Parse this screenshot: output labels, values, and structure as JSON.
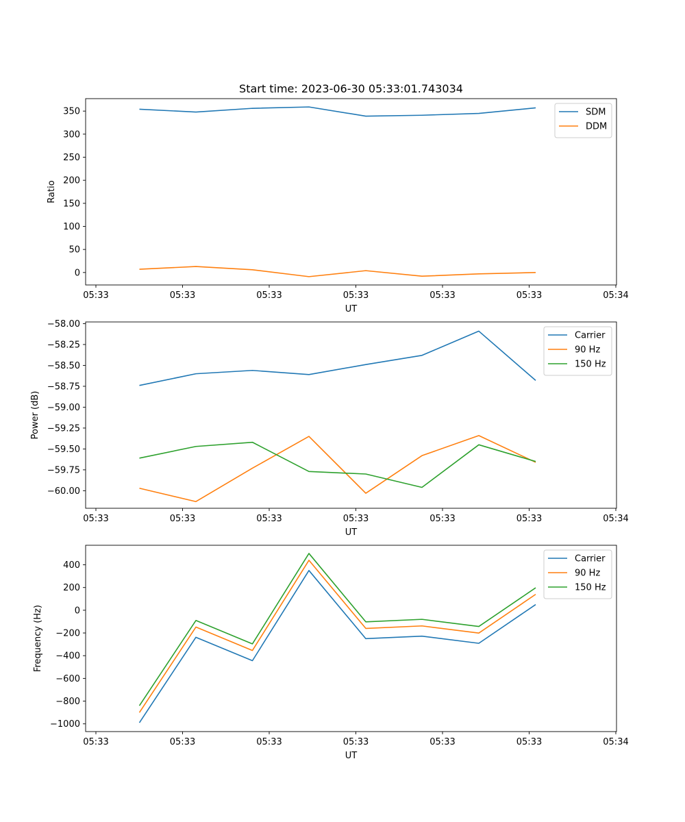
{
  "chart_data": [
    {
      "type": "line",
      "title": "Start time: 2023-06-30 05:33:01.743034",
      "xlabel": "UT",
      "ylabel": "Ratio",
      "x_tick_labels": [
        "05:33",
        "05:33",
        "05:33",
        "05:33",
        "05:33",
        "05:33",
        "05:33",
        "05:34"
      ],
      "x_count": 8,
      "ylim": [
        -27,
        377
      ],
      "yticks": [
        0,
        50,
        100,
        150,
        200,
        250,
        300,
        350
      ],
      "ytick_labels": [
        "0",
        "50",
        "100",
        "150",
        "200",
        "250",
        "300",
        "350"
      ],
      "grid": false,
      "legend_position": "top-right",
      "series": [
        {
          "name": "SDM",
          "color": "#1f77b4",
          "values": [
            354,
            348,
            356,
            359,
            339,
            341,
            345,
            357
          ]
        },
        {
          "name": "DDM",
          "color": "#ff7f0e",
          "values": [
            7,
            13,
            6,
            -9,
            4,
            -8,
            -3,
            0
          ]
        }
      ]
    },
    {
      "type": "line",
      "title": "",
      "xlabel": "UT",
      "ylabel": "Power (dB)",
      "x_tick_labels": [
        "05:33",
        "05:33",
        "05:33",
        "05:33",
        "05:33",
        "05:33",
        "05:33",
        "05:34"
      ],
      "x_count": 8,
      "ylim": [
        -60.21,
        -57.98
      ],
      "yticks": [
        -60.0,
        -59.75,
        -59.5,
        -59.25,
        -59.0,
        -58.75,
        -58.5,
        -58.25,
        -58.0
      ],
      "ytick_labels": [
        "−60.00",
        "−59.75",
        "−59.50",
        "−59.25",
        "−59.00",
        "−58.75",
        "−58.50",
        "−58.25",
        "−58.00"
      ],
      "grid": false,
      "legend_position": "top-right",
      "series": [
        {
          "name": "Carrier",
          "color": "#1f77b4",
          "values": [
            -58.74,
            -58.6,
            -58.56,
            -58.61,
            -58.49,
            -58.38,
            -58.09,
            -58.68
          ]
        },
        {
          "name": "90 Hz",
          "color": "#ff7f0e",
          "values": [
            -59.97,
            -60.13,
            -59.73,
            -59.35,
            -60.03,
            -59.58,
            -59.34,
            -59.66
          ]
        },
        {
          "name": "150 Hz",
          "color": "#2ca02c",
          "values": [
            -59.61,
            -59.47,
            -59.42,
            -59.77,
            -59.8,
            -59.96,
            -59.45,
            -59.65
          ]
        }
      ]
    },
    {
      "type": "line",
      "title": "",
      "xlabel": "UT",
      "ylabel": "Frequency (Hz)",
      "x_tick_labels": [
        "05:33",
        "05:33",
        "05:33",
        "05:33",
        "05:33",
        "05:33",
        "05:33",
        "05:34"
      ],
      "x_count": 8,
      "ylim": [
        -1068,
        572
      ],
      "yticks": [
        -1000,
        -800,
        -600,
        -400,
        -200,
        0,
        200,
        400
      ],
      "ytick_labels": [
        "−1000",
        "−800",
        "−600",
        "−400",
        "−200",
        "0",
        "200",
        "400"
      ],
      "grid": false,
      "legend_position": "top-right",
      "series": [
        {
          "name": "Carrier",
          "color": "#1f77b4",
          "values": [
            -990,
            -238,
            -444,
            350,
            -250,
            -228,
            -291,
            50
          ]
        },
        {
          "name": "90 Hz",
          "color": "#ff7f0e",
          "values": [
            -900,
            -148,
            -354,
            440,
            -160,
            -138,
            -201,
            140
          ]
        },
        {
          "name": "150 Hz",
          "color": "#2ca02c",
          "values": [
            -840,
            -90,
            -296,
            500,
            -102,
            -80,
            -143,
            198
          ]
        }
      ]
    }
  ]
}
